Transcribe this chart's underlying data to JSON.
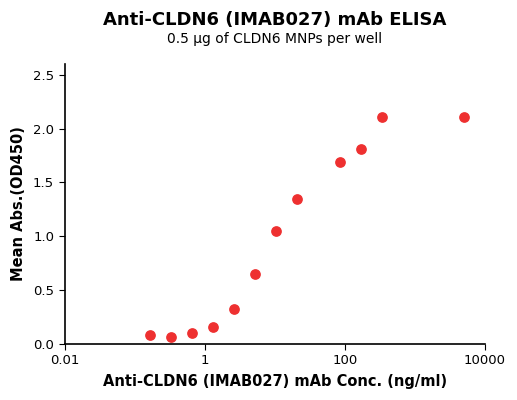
{
  "title": "Anti-CLDN6 (IMAB027) mAb ELISA",
  "subtitle": "0.5 μg of CLDN6 MNPs per well",
  "xlabel": "Anti-CLDN6 (IMAB027) mAb Conc. (ng/ml)",
  "ylabel": "Mean Abs.(OD450)",
  "x_data": [
    0.164,
    0.329,
    0.658,
    1.316,
    2.632,
    5.263,
    10.53,
    21.05,
    84.21,
    168.4,
    336.8,
    5000
  ],
  "y_data": [
    0.082,
    0.065,
    0.095,
    0.155,
    0.325,
    0.645,
    1.045,
    1.345,
    1.69,
    1.81,
    2.11,
    2.11
  ],
  "dot_color": "#EE3030",
  "line_color": "#EE3030",
  "xlim_log": [
    0.01,
    10000
  ],
  "ylim": [
    0.0,
    2.6
  ],
  "yticks": [
    0.0,
    0.5,
    1.0,
    1.5,
    2.0,
    2.5
  ],
  "xtick_positions": [
    0.01,
    1,
    100,
    10000
  ],
  "xtick_labels": [
    "0.01",
    "1",
    "100",
    "10000"
  ],
  "background_color": "#ffffff",
  "title_fontsize": 13,
  "subtitle_fontsize": 10,
  "label_fontsize": 10.5
}
